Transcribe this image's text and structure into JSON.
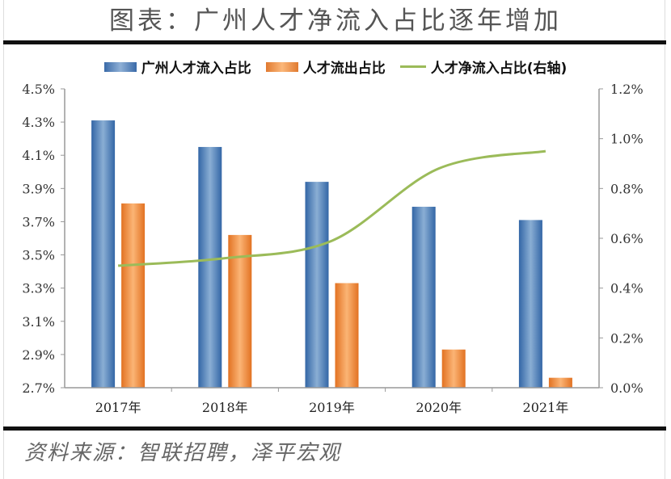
{
  "header": {
    "title": "图表：广州人才净流入占比逐年增加"
  },
  "legend": [
    {
      "label": "广州人才流入占比",
      "type": "bar",
      "color": "#4f81bd"
    },
    {
      "label": "人才流出占比",
      "type": "bar",
      "color": "#f79646"
    },
    {
      "label": "人才净流入占比(右轴)",
      "type": "line",
      "color": "#9bbb59"
    }
  ],
  "footer": {
    "source": "资料来源：智联招聘，泽平宏观"
  },
  "chart_data": {
    "type": "bar",
    "title": "图表：广州人才净流入占比逐年增加",
    "categories": [
      "2017年",
      "2018年",
      "2019年",
      "2020年",
      "2021年"
    ],
    "series": [
      {
        "name": "广州人才流入占比",
        "type": "bar",
        "axis": "left",
        "color": "#4f81bd",
        "values": [
          4.31,
          4.15,
          3.94,
          3.79,
          3.71
        ]
      },
      {
        "name": "人才流出占比",
        "type": "bar",
        "axis": "left",
        "color": "#f79646",
        "values": [
          3.81,
          3.62,
          3.33,
          2.93,
          2.76
        ]
      },
      {
        "name": "人才净流入占比(右轴)",
        "type": "line",
        "axis": "right",
        "color": "#9bbb59",
        "values": [
          0.49,
          0.52,
          0.59,
          0.88,
          0.95
        ]
      }
    ],
    "y_left": {
      "ylim": [
        2.7,
        4.5
      ],
      "ticks": [
        "4.5%",
        "4.3%",
        "4.1%",
        "3.9%",
        "3.7%",
        "3.5%",
        "3.3%",
        "3.1%",
        "2.9%",
        "2.7%"
      ]
    },
    "y_right": {
      "ylim": [
        0.0,
        1.2
      ],
      "ticks": [
        "1.2%",
        "1.0%",
        "0.8%",
        "0.6%",
        "0.4%",
        "0.2%",
        "0.0%"
      ]
    },
    "xlabel": "",
    "ylabel": "",
    "grid": false,
    "legend_position": "top"
  }
}
